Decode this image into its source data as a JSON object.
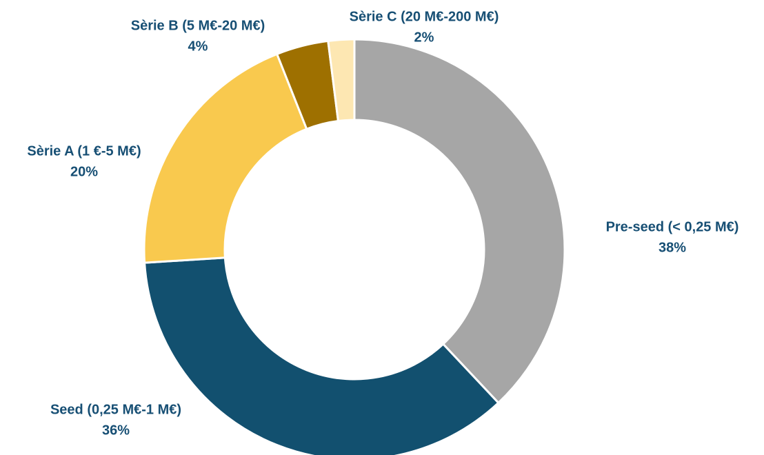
{
  "chart_data": {
    "type": "donut",
    "categories": [
      "Pre-seed (< 0,25 M€)",
      "Seed (0,25 M€-1 M€)",
      "Sèrie A (1 €-5 M€)",
      "Sèrie B (5 M€-20 M€)",
      "Sèrie C (20 M€-200 M€)"
    ],
    "values": [
      38,
      36,
      20,
      4,
      2
    ],
    "value_labels": [
      "38%",
      "36%",
      "20%",
      "4%",
      "2%"
    ],
    "colors": [
      "#a6a6a6",
      "#12506f",
      "#f9c94e",
      "#9e7000",
      "#fde7b2"
    ]
  }
}
